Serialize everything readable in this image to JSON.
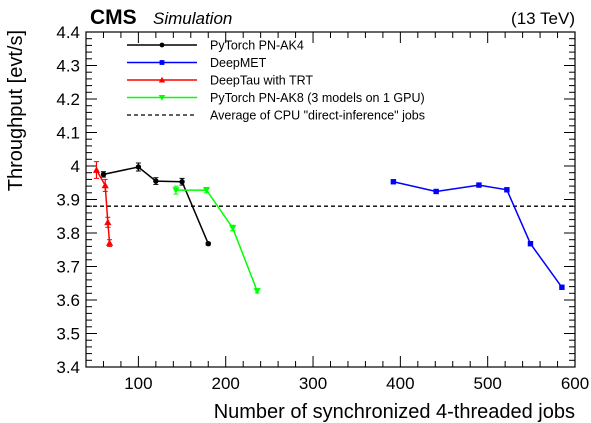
{
  "header": {
    "experiment": "CMS",
    "label": "Simulation",
    "energy": "(13 TeV)"
  },
  "chart_data": {
    "type": "line",
    "xlabel": "Number of synchronized 4-threaded jobs",
    "ylabel": "Throughput [evt/s]",
    "xlim": [
      40,
      600
    ],
    "ylim": [
      3.4,
      4.4
    ],
    "xticks": [
      "100",
      "200",
      "300",
      "400",
      "500",
      "600"
    ],
    "yticks": [
      "3.4",
      "3.5",
      "3.6",
      "3.7",
      "3.8",
      "3.9",
      "4",
      "4.1",
      "4.2",
      "4.3",
      "4.4"
    ],
    "grid": false,
    "legend_position": "top-left",
    "series": [
      {
        "name": "PyTorch PN-AK4",
        "color": "#000000",
        "marker": "circle",
        "x": [
          60,
          100,
          120,
          150,
          180
        ],
        "y": [
          3.975,
          3.997,
          3.955,
          3.953,
          3.768
        ],
        "yerr": [
          0.008,
          0.012,
          0.01,
          0.01,
          0.004
        ]
      },
      {
        "name": "DeepMET",
        "color": "#0000ff",
        "marker": "square",
        "x": [
          392,
          441,
          490,
          522,
          549,
          585
        ],
        "y": [
          3.953,
          3.924,
          3.943,
          3.929,
          3.768,
          3.638
        ],
        "yerr": [
          0,
          0,
          0,
          0,
          0,
          0
        ]
      },
      {
        "name": "DeepTau with TRT",
        "color": "#ff0000",
        "marker": "triangle-up",
        "x": [
          52,
          62,
          65,
          67
        ],
        "y": [
          3.988,
          3.942,
          3.832,
          3.77
        ],
        "yerr": [
          0.025,
          0.018,
          0.015,
          0.01
        ]
      },
      {
        "name": "PyTorch PN-AK8 (3 models on 1 GPU)",
        "color": "#00ff00",
        "marker": "triangle-down",
        "x": [
          143,
          178,
          208,
          236
        ],
        "y": [
          3.928,
          3.928,
          3.815,
          3.627
        ],
        "yerr": [
          0.012,
          0.008,
          0.008,
          0.006
        ]
      }
    ],
    "reference_line": {
      "name": "Average of CPU \"direct-inference\" jobs",
      "y": 3.88,
      "color": "#000000",
      "style": "dashed"
    }
  }
}
